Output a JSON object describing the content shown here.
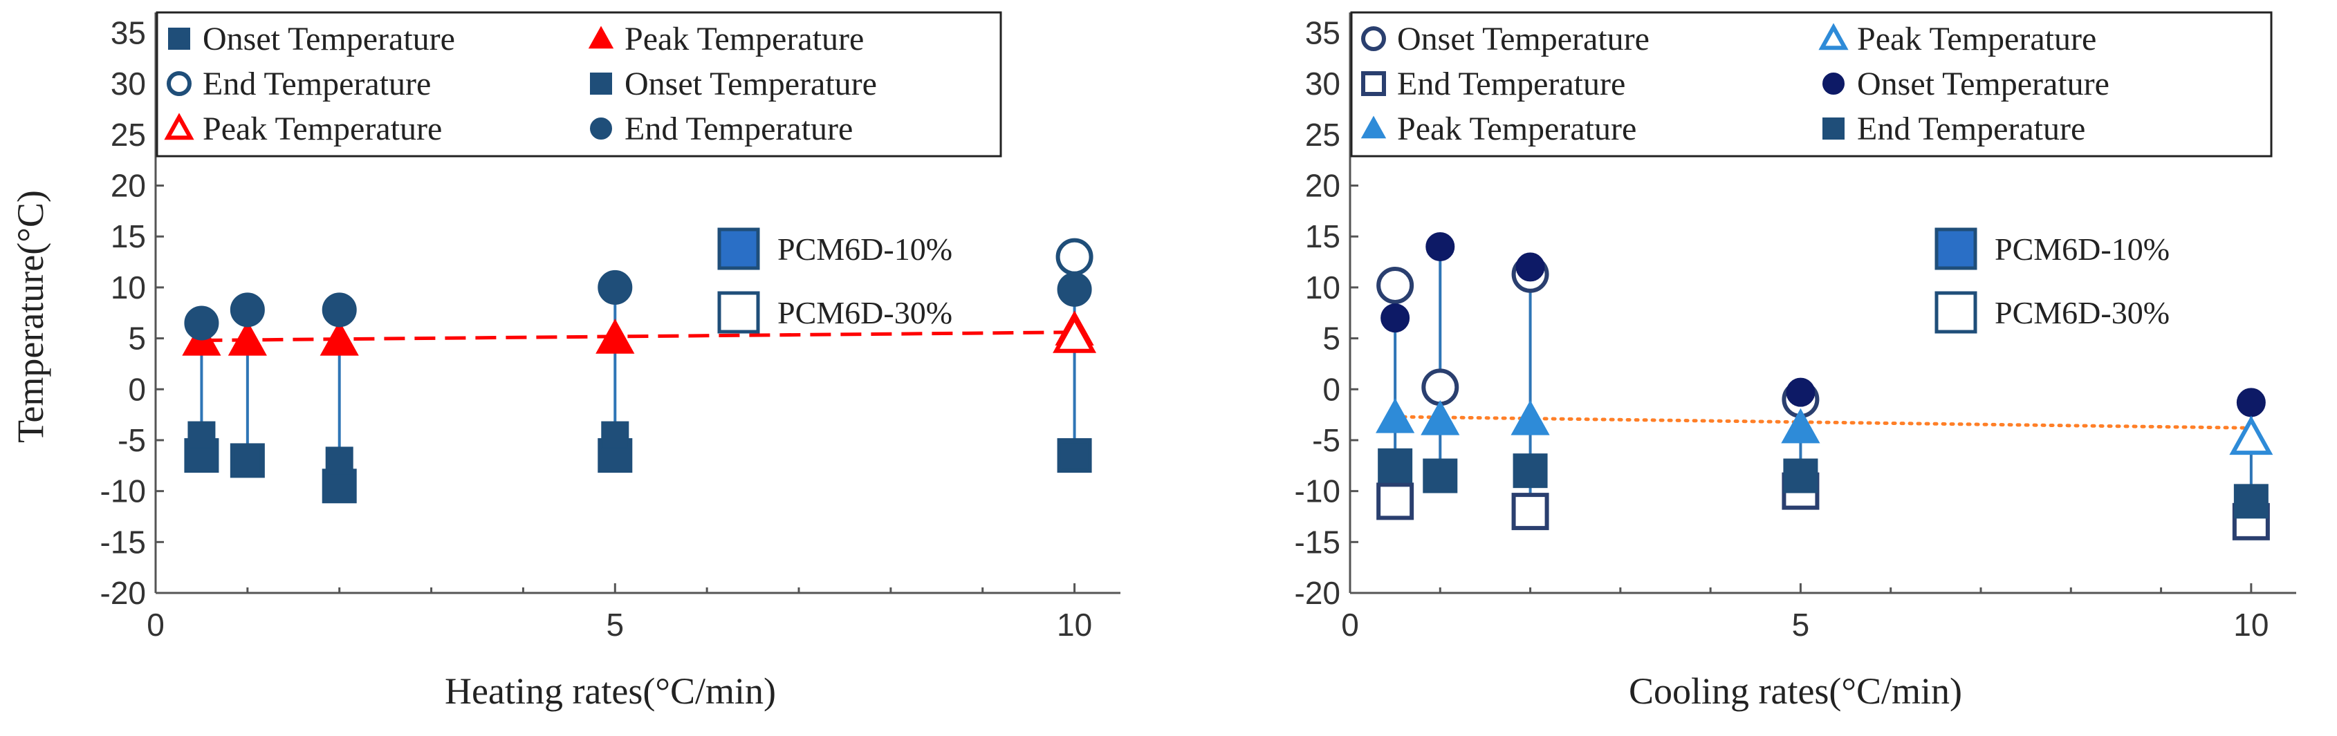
{
  "chart_data": [
    {
      "type": "scatter",
      "panel": "heating",
      "xlabel": "Heating rates(°C/min)",
      "ylabel": "Temperature(°C)",
      "xlim": [
        0,
        10.5
      ],
      "ylim": [
        -20,
        37
      ],
      "xticks": [
        0,
        5,
        10
      ],
      "yticks": [
        -20,
        -15,
        -10,
        -5,
        0,
        5,
        10,
        15,
        20,
        25,
        30,
        35
      ],
      "legend": {
        "entries": [
          {
            "label": "Onset Temperature",
            "marker": "square",
            "filled": true,
            "color": "#1f4e79"
          },
          {
            "label": "Peak Temperature",
            "marker": "triangle",
            "filled": true,
            "color": "#ff0000"
          },
          {
            "label": "End Temperature",
            "marker": "circle",
            "filled": false,
            "color": "#1f4e79"
          },
          {
            "label": "Onset Temperature",
            "marker": "square",
            "filled": true,
            "color": "#1f4e79"
          },
          {
            "label": "Peak Temperature",
            "marker": "triangle",
            "filled": false,
            "color": "#ff0000"
          },
          {
            "label": "End Temperature",
            "marker": "circle",
            "filled": true,
            "color": "#1f4e79"
          }
        ]
      },
      "sample_legend": [
        {
          "label": "PCM6D-10%",
          "filled": true
        },
        {
          "label": "PCM6D-30%",
          "filled": false
        }
      ],
      "trendline": {
        "x": [
          0.5,
          10
        ],
        "y": [
          4.8,
          5.6
        ],
        "color": "#ff0000",
        "style": "dashed"
      },
      "stem_color": "#2e75b6",
      "series": [
        {
          "name": "PCM6D-10% Onset",
          "marker": "square",
          "filled": true,
          "color": "#1f4e79",
          "size": "large",
          "x": [
            0.5,
            1,
            2,
            5,
            10
          ],
          "y": [
            -6.5,
            -7,
            -9.5,
            -6.5,
            -6.5
          ]
        },
        {
          "name": "PCM6D-30% Onset",
          "marker": "square",
          "filled": true,
          "color": "#1f4e79",
          "size": "small",
          "x": [
            0.5,
            1,
            2,
            5,
            10
          ],
          "y": [
            -4.5,
            -7,
            -7,
            -4.5,
            -6.5
          ]
        },
        {
          "name": "PCM6D-10% Peak",
          "marker": "triangle",
          "filled": true,
          "color": "#ff0000",
          "size": "large",
          "x": [
            0.5,
            1,
            2,
            5,
            10
          ],
          "y": [
            4.8,
            4.8,
            4.8,
            5,
            5.8
          ]
        },
        {
          "name": "PCM6D-30% Peak",
          "marker": "triangle",
          "filled": false,
          "color": "#ff0000",
          "size": "large",
          "x": [
            10
          ],
          "y": [
            5.2
          ]
        },
        {
          "name": "PCM6D-10% End",
          "marker": "circle",
          "filled": true,
          "color": "#1f4e79",
          "size": "large",
          "x": [
            0.5,
            1,
            2,
            5,
            10
          ],
          "y": [
            6.5,
            7.8,
            7.8,
            10,
            9.8
          ]
        },
        {
          "name": "PCM6D-30% End",
          "marker": "circle",
          "filled": false,
          "color": "#1f4e79",
          "size": "large",
          "x": [
            10
          ],
          "y": [
            13
          ]
        }
      ]
    },
    {
      "type": "scatter",
      "panel": "cooling",
      "xlabel": "Cooling rates(°C/min)",
      "ylabel": "",
      "xlim": [
        0,
        10.5
      ],
      "ylim": [
        -20,
        37
      ],
      "xticks": [
        0,
        5,
        10
      ],
      "yticks": [
        -20,
        -15,
        -10,
        -5,
        0,
        5,
        10,
        15,
        20,
        25,
        30,
        35
      ],
      "legend": {
        "entries": [
          {
            "label": "Onset Temperature",
            "marker": "circle",
            "filled": false,
            "color": "#2a3f6f"
          },
          {
            "label": "Peak Temperature",
            "marker": "triangle",
            "filled": false,
            "color": "#2e8bd8"
          },
          {
            "label": "End Temperature",
            "marker": "square",
            "filled": false,
            "color": "#2a3f6f"
          },
          {
            "label": "Onset Temperature",
            "marker": "circle",
            "filled": true,
            "color": "#0d1a66"
          },
          {
            "label": "Peak Temperature",
            "marker": "triangle",
            "filled": true,
            "color": "#2e8bd8"
          },
          {
            "label": "End Temperature",
            "marker": "square",
            "filled": true,
            "color": "#1f4e79"
          }
        ]
      },
      "sample_legend": [
        {
          "label": "PCM6D-10%",
          "filled": true
        },
        {
          "label": "PCM6D-30%",
          "filled": false
        }
      ],
      "trendline": {
        "x": [
          0.5,
          10
        ],
        "y": [
          -2.7,
          -3.8
        ],
        "color": "#ff7f27",
        "style": "dotted"
      },
      "stem_color": "#2e75b6",
      "series": [
        {
          "name": "PCM6D-30% Onset",
          "marker": "circle",
          "filled": false,
          "color": "#2a3f6f",
          "size": "large",
          "x": [
            0.5,
            1,
            2,
            5
          ],
          "y": [
            10.2,
            0.2,
            11.3,
            -1
          ]
        },
        {
          "name": "PCM6D-10% Onset",
          "marker": "circle",
          "filled": true,
          "color": "#0d1a66",
          "size": "medium",
          "x": [
            0.5,
            1,
            2,
            5,
            10
          ],
          "y": [
            7,
            14,
            12,
            -0.3,
            -1.3
          ]
        },
        {
          "name": "PCM6D-30% Peak",
          "marker": "triangle",
          "filled": false,
          "color": "#2e8bd8",
          "size": "large",
          "x": [
            10
          ],
          "y": [
            -4.8
          ]
        },
        {
          "name": "PCM6D-10% Peak",
          "marker": "triangle",
          "filled": true,
          "color": "#2e8bd8",
          "size": "large",
          "x": [
            0.5,
            1,
            2,
            5
          ],
          "y": [
            -2.8,
            -3,
            -3,
            -3.8
          ]
        },
        {
          "name": "PCM6D-30% End",
          "marker": "square",
          "filled": false,
          "color": "#2a3f6f",
          "size": "large",
          "x": [
            0.5,
            2,
            5,
            10
          ],
          "y": [
            -11,
            -12,
            -10,
            -13
          ]
        },
        {
          "name": "PCM6D-10% End",
          "marker": "square",
          "filled": true,
          "color": "#1f4e79",
          "size": "large",
          "x": [
            0.5,
            1,
            2,
            5,
            10
          ],
          "y": [
            -7.5,
            -8.5,
            -8,
            -8.5,
            -11
          ]
        }
      ]
    }
  ]
}
